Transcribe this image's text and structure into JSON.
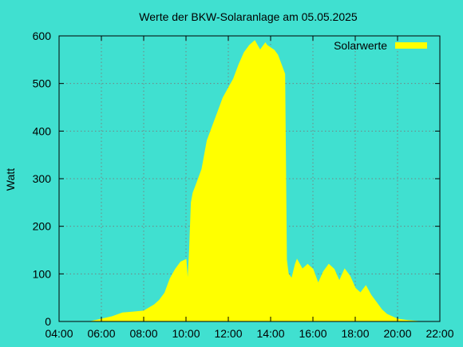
{
  "chart_data": {
    "type": "area",
    "title": "Werte der BKW-Solaranlage am 05.05.2025",
    "xlabel": "",
    "ylabel": "Watt",
    "xlim": [
      "04:00",
      "22:00"
    ],
    "ylim": [
      0,
      600
    ],
    "x_ticks": [
      "04:00",
      "06:00",
      "08:00",
      "10:00",
      "12:00",
      "14:00",
      "16:00",
      "18:00",
      "20:00",
      "22:00"
    ],
    "y_ticks": [
      "0",
      "100",
      "200",
      "300",
      "400",
      "500",
      "600"
    ],
    "grid": true,
    "legend_position": "top-right",
    "series": [
      {
        "name": "Solarwerte",
        "color": "#ffff00",
        "x": [
          "05:30",
          "06:00",
          "06:30",
          "07:00",
          "07:30",
          "08:00",
          "08:30",
          "08:45",
          "09:00",
          "09:15",
          "09:30",
          "09:45",
          "10:00",
          "10:05",
          "10:10",
          "10:15",
          "10:20",
          "10:30",
          "10:45",
          "11:00",
          "11:15",
          "11:30",
          "11:45",
          "12:00",
          "12:15",
          "12:30",
          "12:45",
          "13:00",
          "13:15",
          "13:30",
          "13:45",
          "13:50",
          "14:00",
          "14:10",
          "14:20",
          "14:30",
          "14:40",
          "14:45",
          "14:50",
          "15:00",
          "15:10",
          "15:15",
          "15:30",
          "15:45",
          "16:00",
          "16:15",
          "16:30",
          "16:45",
          "17:00",
          "17:15",
          "17:30",
          "17:45",
          "18:00",
          "18:15",
          "18:30",
          "18:45",
          "19:00",
          "19:15",
          "19:30",
          "20:00",
          "20:30",
          "21:00"
        ],
        "values": [
          0,
          5,
          10,
          18,
          20,
          22,
          35,
          45,
          60,
          90,
          110,
          125,
          130,
          80,
          150,
          250,
          270,
          290,
          320,
          380,
          410,
          440,
          470,
          490,
          510,
          540,
          565,
          580,
          590,
          570,
          585,
          580,
          575,
          570,
          560,
          540,
          520,
          130,
          100,
          90,
          120,
          130,
          110,
          120,
          110,
          80,
          105,
          120,
          110,
          85,
          110,
          95,
          70,
          60,
          75,
          55,
          40,
          25,
          15,
          5,
          2,
          0
        ]
      }
    ]
  }
}
